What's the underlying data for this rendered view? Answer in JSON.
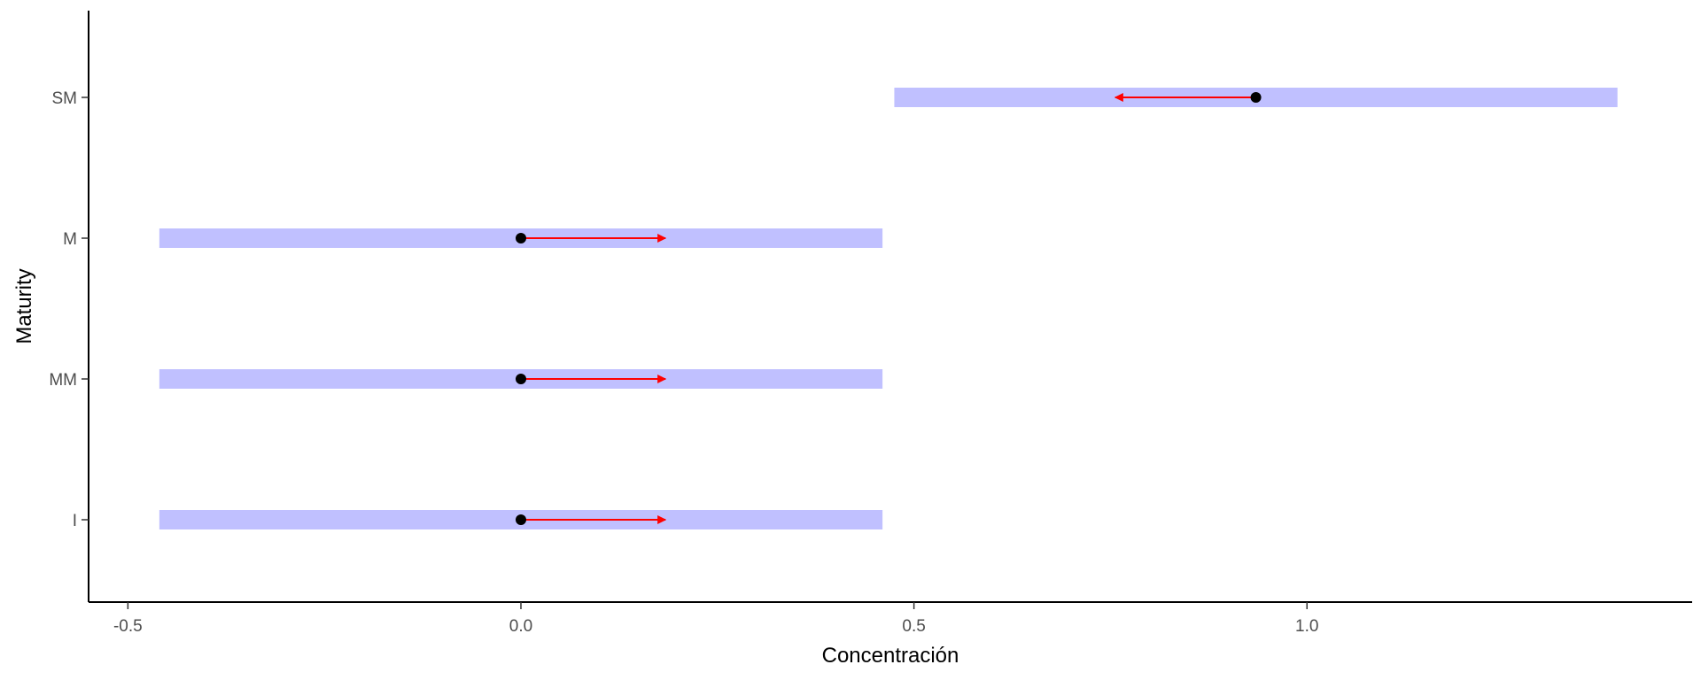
{
  "chart_data": {
    "type": "interval",
    "xlabel": "Concentración",
    "ylabel": "Maturity",
    "xlim": [
      -0.55,
      1.49
    ],
    "categories": [
      "I",
      "MM",
      "M",
      "SM"
    ],
    "x_ticks": [
      {
        "value": -0.5,
        "label": "-0.5"
      },
      {
        "value": 0.0,
        "label": "0.0"
      },
      {
        "value": 0.5,
        "label": "0.5"
      },
      {
        "value": 1.0,
        "label": "1.0"
      }
    ],
    "rows": [
      {
        "category": "I",
        "interval": [
          -0.46,
          0.46
        ],
        "point": 0.0,
        "arrow_to": 0.185
      },
      {
        "category": "MM",
        "interval": [
          -0.46,
          0.46
        ],
        "point": 0.0,
        "arrow_to": 0.185
      },
      {
        "category": "M",
        "interval": [
          -0.46,
          0.46
        ],
        "point": 0.0,
        "arrow_to": 0.185
      },
      {
        "category": "SM",
        "interval": [
          0.475,
          1.395
        ],
        "point": 0.935,
        "arrow_to": 0.755
      }
    ],
    "colors": {
      "interval": "#c0c0ff",
      "arrow": "#ff0000",
      "point": "#000000",
      "axis": "#000000"
    },
    "grid": false,
    "legend": "none"
  }
}
